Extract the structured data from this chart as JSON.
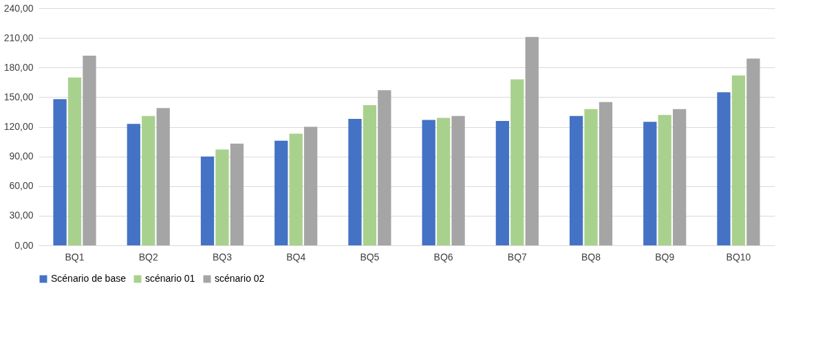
{
  "chart_data": {
    "type": "bar",
    "categories": [
      "BQ1",
      "BQ2",
      "BQ3",
      "BQ4",
      "BQ5",
      "BQ6",
      "BQ7",
      "BQ8",
      "BQ9",
      "BQ10"
    ],
    "series": [
      {
        "name": "Scénario de base",
        "color": "#4472c4",
        "values": [
          148,
          123,
          90,
          106,
          128,
          127,
          126,
          131,
          125,
          155
        ]
      },
      {
        "name": "scénario 01",
        "color": "#a9d18e",
        "values": [
          170,
          131,
          97,
          113,
          142,
          129,
          168,
          138,
          132,
          172
        ]
      },
      {
        "name": "scénario 02",
        "color": "#a5a5a5",
        "values": [
          192,
          139,
          103,
          120,
          157,
          131,
          211,
          145,
          138,
          189
        ]
      }
    ],
    "ylim": [
      0,
      240
    ],
    "yticks": [
      {
        "value": 0,
        "label": "0,00"
      },
      {
        "value": 30,
        "label": "30,00"
      },
      {
        "value": 60,
        "label": "60,00"
      },
      {
        "value": 90,
        "label": "90,00"
      },
      {
        "value": 120,
        "label": "120,00"
      },
      {
        "value": 150,
        "label": "150,00"
      },
      {
        "value": 180,
        "label": "180,00"
      },
      {
        "value": 210,
        "label": "210,00"
      },
      {
        "value": 240,
        "label": "240,00"
      }
    ],
    "grid": "y",
    "legend": "bottom"
  }
}
